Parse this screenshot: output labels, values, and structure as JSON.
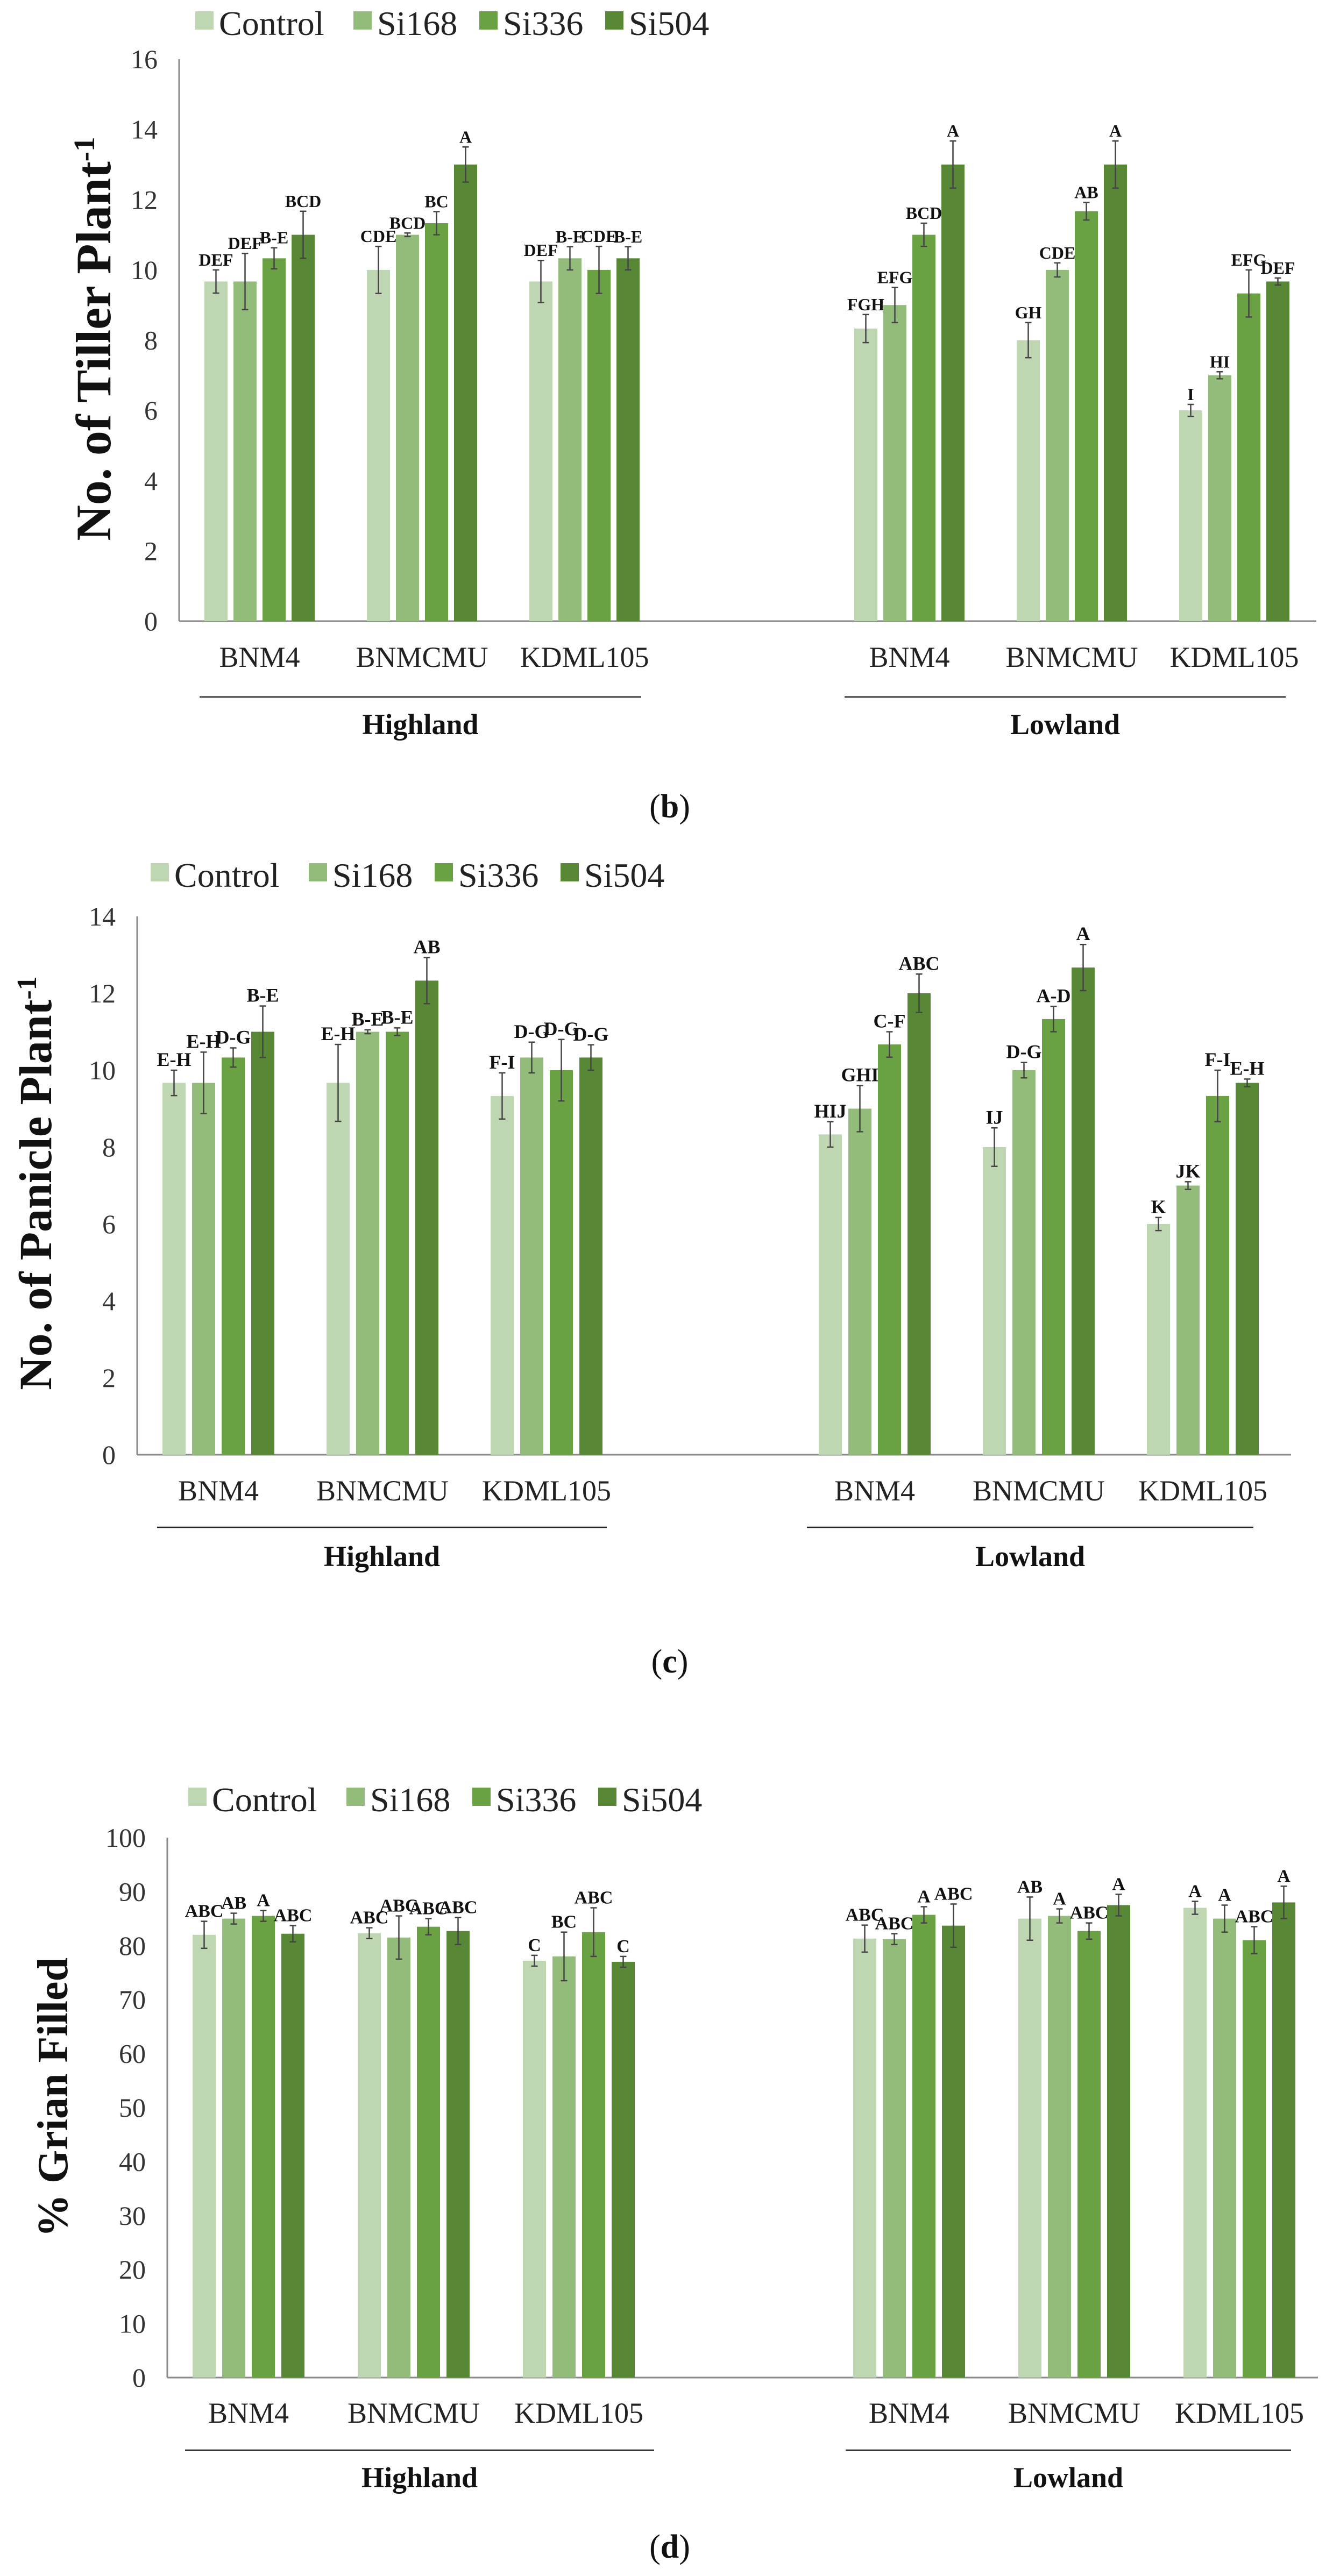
{
  "colors": {
    "Control": "#BFD6B2",
    "Si168": "#93BC7A",
    "Si336": "#6AA142",
    "Si504": "#588835",
    "axis": "#8a8a8a",
    "error": "#444444"
  },
  "chart_data": [
    {
      "type": "bar",
      "caption_letter": "b",
      "ylabel": "No.  of  Tiller Plant",
      "ylabel_sup": "-1",
      "ylim": [
        0,
        16
      ],
      "yticks": [
        0,
        2,
        4,
        6,
        8,
        10,
        12,
        14,
        16
      ],
      "categories": [
        "BNM4",
        "BNMCMU",
        "KDML105",
        "BNM4",
        "BNMCMU",
        "KDML105"
      ],
      "sites": [
        {
          "label": "Highland",
          "from": 0,
          "to": 2
        },
        {
          "label": "Lowland",
          "from": 3,
          "to": 5
        }
      ],
      "legend_position": "top",
      "series": [
        {
          "name": "Control",
          "values": [
            9.67,
            10,
            9.67,
            8.33,
            8,
            6
          ],
          "errors": [
            0.33,
            0.67,
            0.6,
            0.4,
            0.5,
            0.17
          ],
          "letters": [
            "DEF",
            "CDE",
            "DEF",
            "FGH",
            "GH",
            "I"
          ]
        },
        {
          "name": "Si168",
          "values": [
            9.67,
            11,
            10.33,
            9,
            10,
            7
          ],
          "errors": [
            0.8,
            0.05,
            0.33,
            0.5,
            0.2,
            0.1
          ],
          "letters": [
            "DEF",
            "BCD",
            "B-E",
            "EFG",
            "CDE",
            "HI"
          ]
        },
        {
          "name": "Si336",
          "values": [
            10.33,
            11.33,
            10,
            11,
            11.67,
            9.33
          ],
          "errors": [
            0.3,
            0.33,
            0.67,
            0.33,
            0.25,
            0.67
          ],
          "letters": [
            "B-E",
            "BC",
            "CDE",
            "BCD",
            "AB",
            "EFG"
          ]
        },
        {
          "name": "Si504",
          "values": [
            11,
            13,
            10.33,
            13,
            13,
            9.67
          ],
          "errors": [
            0.67,
            0.5,
            0.33,
            0.67,
            0.67,
            0.1
          ],
          "letters": [
            "BCD",
            "A",
            "B-E",
            "A",
            "A",
            "DEF"
          ]
        }
      ]
    },
    {
      "type": "bar",
      "caption_letter": "c",
      "ylabel": "No. of Panicle Plant",
      "ylabel_sup": "-1",
      "ylim": [
        0,
        14
      ],
      "yticks": [
        0,
        2,
        4,
        6,
        8,
        10,
        12,
        14
      ],
      "categories": [
        "BNM4",
        "BNMCMU",
        "KDML105",
        "BNM4",
        "BNMCMU",
        "KDML105"
      ],
      "sites": [
        {
          "label": "Highland",
          "from": 0,
          "to": 2
        },
        {
          "label": "Lowland",
          "from": 3,
          "to": 5
        }
      ],
      "legend_position": "top",
      "series": [
        {
          "name": "Control",
          "values": [
            9.67,
            9.67,
            9.33,
            8.33,
            8,
            6
          ],
          "errors": [
            0.33,
            1.0,
            0.6,
            0.33,
            0.5,
            0.17
          ],
          "letters": [
            "E-H",
            "E-H",
            "F-I",
            "HIJ",
            "IJ",
            "K"
          ]
        },
        {
          "name": "Si168",
          "values": [
            9.67,
            11,
            10.33,
            9,
            10,
            7
          ],
          "errors": [
            0.8,
            0.05,
            0.4,
            0.6,
            0.2,
            0.1
          ],
          "letters": [
            "E-H",
            "B-E",
            "D-G",
            "GHI",
            "D-G",
            "JK"
          ]
        },
        {
          "name": "Si336",
          "values": [
            10.33,
            11,
            10,
            10.67,
            11.33,
            9.33
          ],
          "errors": [
            0.25,
            0.1,
            0.8,
            0.33,
            0.33,
            0.67
          ],
          "letters": [
            "D-G",
            "B-E",
            "D-G",
            "C-F",
            "A-D",
            "F-I"
          ]
        },
        {
          "name": "Si504",
          "values": [
            11,
            12.33,
            10.33,
            12,
            12.67,
            9.67
          ],
          "errors": [
            0.67,
            0.6,
            0.33,
            0.5,
            0.6,
            0.1
          ],
          "letters": [
            "B-E",
            "AB",
            "D-G",
            "ABC",
            "A",
            "E-H"
          ]
        }
      ]
    },
    {
      "type": "bar",
      "caption_letter": "d",
      "ylabel": "% Grian Filled",
      "ylabel_sup": "",
      "ylim": [
        0,
        100
      ],
      "yticks": [
        0,
        10,
        20,
        30,
        40,
        50,
        60,
        70,
        80,
        90,
        100
      ],
      "categories": [
        "BNM4",
        "BNMCMU",
        "KDML105",
        "BNM4",
        "BNMCMU",
        "KDML105"
      ],
      "sites": [
        {
          "label": "Highland",
          "from": 0,
          "to": 2
        },
        {
          "label": "Lowland",
          "from": 3,
          "to": 5
        }
      ],
      "legend_position": "top",
      "series": [
        {
          "name": "Control",
          "values": [
            82,
            82.3,
            77.2,
            81.3,
            85,
            87
          ],
          "errors": [
            2.5,
            1,
            1,
            2.5,
            4,
            1.2
          ],
          "letters": [
            "ABC",
            "ABC",
            "C",
            "ABC",
            "AB",
            "A"
          ]
        },
        {
          "name": "Si168",
          "values": [
            85,
            81.5,
            78,
            81.2,
            85.5,
            85
          ],
          "errors": [
            1,
            4,
            4.5,
            1,
            1.3,
            2.5
          ],
          "letters": [
            "AB",
            "ABC",
            "BC",
            "ABC",
            "A",
            "A"
          ]
        },
        {
          "name": "Si336",
          "values": [
            85.5,
            83.5,
            82.5,
            85.7,
            82.7,
            81
          ],
          "errors": [
            1,
            1.5,
            4.5,
            1.5,
            1.5,
            2.5
          ],
          "letters": [
            "A",
            "ABC",
            "ABC",
            "A",
            "ABC",
            "ABC"
          ]
        },
        {
          "name": "Si504",
          "values": [
            82.2,
            82.7,
            77,
            83.7,
            87.5,
            88
          ],
          "errors": [
            1.5,
            2.5,
            1,
            4,
            2,
            3
          ],
          "letters": [
            "ABC",
            "ABC",
            "C",
            "ABC",
            "A",
            "A"
          ]
        }
      ]
    }
  ]
}
